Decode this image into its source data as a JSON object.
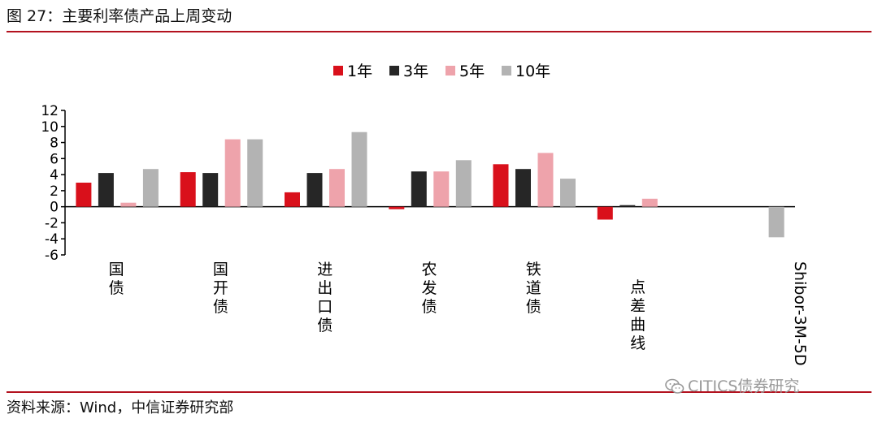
{
  "header": {
    "title": "图 27：主要利率债产品上周变动"
  },
  "footer": {
    "source": "资料来源：Wind，中信证券研究部"
  },
  "watermark": {
    "text": "CITICS债券研究",
    "icon": "wechat-icon"
  },
  "chart_data": {
    "type": "bar",
    "title": "",
    "xlabel": "",
    "ylabel": "",
    "categories": [
      "国债",
      "国开债",
      "进出口债",
      "农发债",
      "铁道债",
      "点差曲线",
      "Shibor-3M-5D"
    ],
    "series": [
      {
        "name": "1年",
        "color": "#d9101b",
        "values": [
          3.0,
          4.3,
          1.8,
          -0.3,
          5.3,
          -1.6,
          null
        ]
      },
      {
        "name": "3年",
        "color": "#262626",
        "values": [
          4.2,
          4.2,
          4.2,
          4.4,
          4.7,
          0.2,
          null
        ]
      },
      {
        "name": "5年",
        "color": "#eea3ab",
        "values": [
          0.5,
          8.4,
          4.7,
          4.4,
          6.7,
          1.0,
          null
        ]
      },
      {
        "name": "10年",
        "color": "#b3b3b3",
        "values": [
          4.7,
          8.4,
          9.3,
          5.8,
          3.5,
          null,
          -3.8
        ]
      }
    ],
    "yticks": [
      12,
      10,
      8,
      6,
      4,
      2,
      0,
      -2,
      -4,
      -6
    ],
    "ylim": [
      -6,
      12
    ],
    "legend": "top-center",
    "grid": false
  }
}
